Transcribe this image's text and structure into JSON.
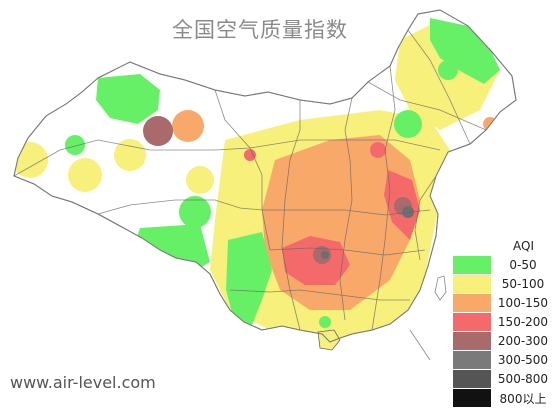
{
  "title": "全国空气质量指数",
  "watermark": "www.air-level.com",
  "legend": {
    "title": "AQI",
    "items": [
      {
        "label": "0-50",
        "color": "#66f066"
      },
      {
        "label": "50-100",
        "color": "#f7f07a"
      },
      {
        "label": "100-150",
        "color": "#f8a96a"
      },
      {
        "label": "150-200",
        "color": "#f46a6a"
      },
      {
        "label": "200-300",
        "color": "#a86a6a"
      },
      {
        "label": "300-500",
        "color": "#7a7a7a"
      },
      {
        "label": "500-800",
        "color": "#555555"
      },
      {
        "label": "800以上",
        "color": "#111111"
      }
    ]
  }
}
